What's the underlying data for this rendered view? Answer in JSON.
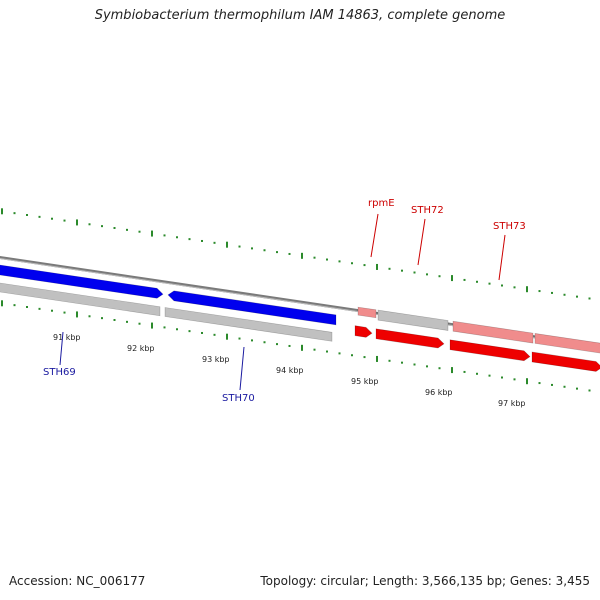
{
  "title": "Symbiobacterium thermophilum IAM 14863, complete genome",
  "footer": {
    "accession": "Accession: NC_006177",
    "summary": "Topology: circular; Length: 3,566,135 bp; Genes: 3,455"
  },
  "colors": {
    "forward_strand": "#0000ee",
    "reverse_strand": "#ee0000",
    "highlight_light": "#f08c8c",
    "other_gene": "#c0c0c0",
    "backbone": "#808080",
    "tick": "#2b8a2b",
    "label_blue": "#1a1aa0",
    "label_red": "#cc0000"
  },
  "scale_labels": [
    "91 kbp",
    "92 kbp",
    "93 kbp",
    "94 kbp",
    "95 kbp",
    "96 kbp",
    "97 kbp"
  ],
  "gene_labels": [
    {
      "name": "STH69",
      "color": "blue"
    },
    {
      "name": "STH70",
      "color": "blue"
    },
    {
      "name": "rpmE",
      "color": "red"
    },
    {
      "name": "STH72",
      "color": "red"
    },
    {
      "name": "STH73",
      "color": "red"
    }
  ]
}
